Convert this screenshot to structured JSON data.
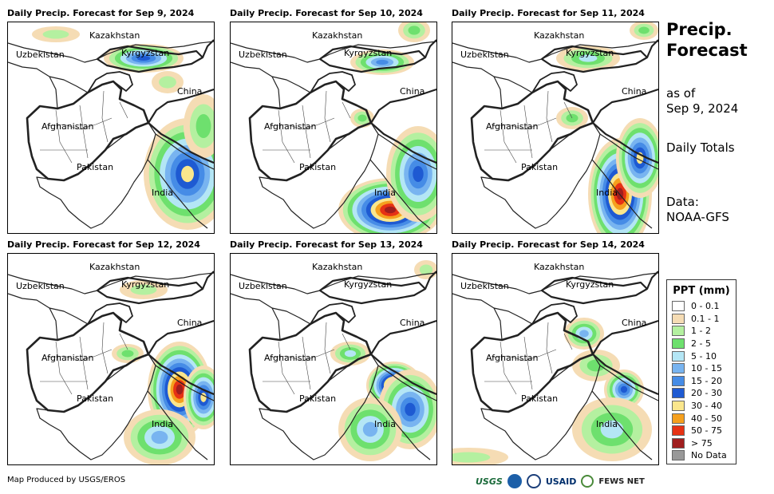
{
  "panels": [
    {
      "title": "Daily Precip. Forecast for Sep 9, 2024"
    },
    {
      "title": "Daily Precip. Forecast for Sep 10, 2024"
    },
    {
      "title": "Daily Precip. Forecast for Sep 11, 2024"
    },
    {
      "title": "Daily Precip. Forecast for Sep 12, 2024"
    },
    {
      "title": "Daily Precip. Forecast for Sep 13, 2024"
    },
    {
      "title": "Daily Precip. Forecast for Sep 14, 2024"
    }
  ],
  "map_labels": {
    "kazakhstan": "Kazakhstan",
    "uzbekistan": "Uzbekistan",
    "kyrgyzstan": "Kyrgyzstan",
    "china": "China",
    "afghanistan": "Afghanistan",
    "pakistan": "Pakistan",
    "india": "India"
  },
  "side": {
    "title_line1": "Precip.",
    "title_line2": "Forecast",
    "asof_line1": "as of",
    "asof_line2": "Sep 9, 2024",
    "totals": "Daily Totals",
    "data_line1": "Data:",
    "data_line2": "NOAA-GFS"
  },
  "legend": {
    "title": "PPT (mm)",
    "items": [
      {
        "label": "0 - 0.1",
        "color": "#ffffff"
      },
      {
        "label": "0.1 - 1",
        "color": "#f5dcb4"
      },
      {
        "label": "1 - 2",
        "color": "#b4f0a0"
      },
      {
        "label": "2 - 5",
        "color": "#6ee06e"
      },
      {
        "label": "5 - 10",
        "color": "#b4e6f5"
      },
      {
        "label": "10 - 15",
        "color": "#78b4f0"
      },
      {
        "label": "15 - 20",
        "color": "#468ce6"
      },
      {
        "label": "20 - 30",
        "color": "#1e5ad2"
      },
      {
        "label": "30 - 40",
        "color": "#fae68c"
      },
      {
        "label": "40 - 50",
        "color": "#f5a01e"
      },
      {
        "label": "50 - 75",
        "color": "#e63214"
      },
      {
        "label": "> 75",
        "color": "#a01e1e"
      },
      {
        "label": "No Data",
        "color": "#999999"
      }
    ]
  },
  "footer": "Map Produced by USGS/EROS",
  "logos": {
    "usgs": "USGS",
    "usaid": "USAID",
    "fews": "FEWS NET"
  }
}
